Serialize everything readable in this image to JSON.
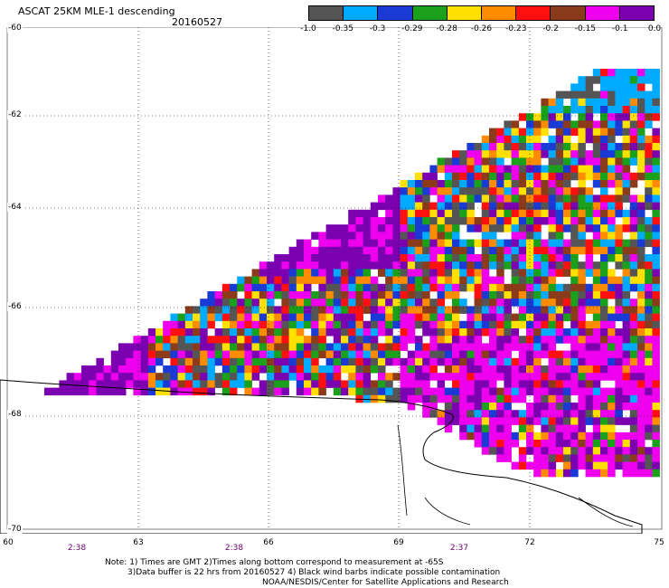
{
  "title": "ASCAT 25KM MLE-1 descending",
  "date": "20160527",
  "colorbar": {
    "labels": [
      "-1.0",
      "-0.35",
      "-0.3",
      "-0.29",
      "-0.28",
      "-0.26",
      "-0.23",
      "-0.2",
      "-0.15",
      "-0.1",
      "0.0"
    ],
    "colors": [
      "#555555",
      "#00aaff",
      "#1a3ad6",
      "#1aa01a",
      "#ffe000",
      "#ff8c00",
      "#ff1010",
      "#8b3a1a",
      "#ee00ee",
      "#7a00b0"
    ]
  },
  "axes": {
    "lat_labels": [
      "-60",
      "-62",
      "-64",
      "-66",
      "-68",
      "-70"
    ],
    "lon_labels": [
      "60",
      "63",
      "66",
      "69",
      "72",
      "75"
    ]
  },
  "times": [
    "2:38",
    "2:38",
    "2:37"
  ],
  "notes": {
    "line1": "Note: 1) Times are GMT 2)Times along bottom correspond to measurement at -65S",
    "line2": "3)Data buffer is 22 hrs from 20160527 4) Black wind barbs indicate possible contamination",
    "line3": "NOAA/NESDIS/Center for Satellite Applications and Research"
  }
}
